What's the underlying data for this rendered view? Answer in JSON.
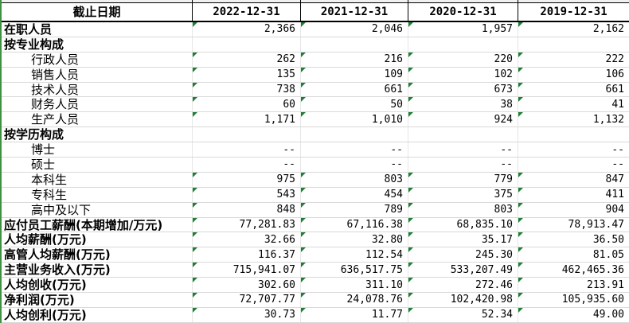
{
  "colors": {
    "left_edge_green": "#3f9142",
    "indicator_triangle_green": "#1e7e34",
    "header_border_black": "#000000",
    "gridline_gray": "#d9d9d9",
    "background": "#ffffff"
  },
  "table": {
    "header": {
      "label": "截止日期",
      "dates": [
        "2022-12-31",
        "2021-12-31",
        "2020-12-31",
        "2019-12-31"
      ]
    },
    "rows": [
      {
        "label": "在职人员",
        "style": "bold",
        "values": [
          "2,366",
          "2,046",
          "1,957",
          "2,162"
        ]
      },
      {
        "label": "按专业构成",
        "style": "bold",
        "values": [
          "",
          "",
          "",
          ""
        ]
      },
      {
        "label": "行政人员",
        "style": "indent",
        "values": [
          "262",
          "216",
          "220",
          "222"
        ]
      },
      {
        "label": "销售人员",
        "style": "indent",
        "values": [
          "135",
          "109",
          "102",
          "106"
        ]
      },
      {
        "label": "技术人员",
        "style": "indent",
        "values": [
          "738",
          "661",
          "673",
          "661"
        ]
      },
      {
        "label": "财务人员",
        "style": "indent",
        "values": [
          "60",
          "50",
          "38",
          "41"
        ]
      },
      {
        "label": "生产人员",
        "style": "indent",
        "values": [
          "1,171",
          "1,010",
          "924",
          "1,132"
        ]
      },
      {
        "label": "按学历构成",
        "style": "bold",
        "values": [
          "",
          "",
          "",
          ""
        ]
      },
      {
        "label": "博士",
        "style": "indent",
        "values": [
          "--",
          "--",
          "--",
          "--"
        ]
      },
      {
        "label": "硕士",
        "style": "indent",
        "values": [
          "--",
          "--",
          "--",
          "--"
        ]
      },
      {
        "label": "本科生",
        "style": "indent",
        "values": [
          "975",
          "803",
          "779",
          "847"
        ]
      },
      {
        "label": "专科生",
        "style": "indent",
        "values": [
          "543",
          "454",
          "375",
          "411"
        ]
      },
      {
        "label": "高中及以下",
        "style": "indent",
        "values": [
          "848",
          "789",
          "803",
          "904"
        ]
      },
      {
        "label": "应付员工薪酬(本期增加/万元)",
        "style": "bold",
        "values": [
          "77,281.83",
          "67,116.38",
          "68,835.10",
          "78,913.47"
        ]
      },
      {
        "label": "人均薪酬(万元)",
        "style": "bold",
        "values": [
          "32.66",
          "32.80",
          "35.17",
          "36.50"
        ]
      },
      {
        "label": "高管人均薪酬(万元)",
        "style": "bold",
        "values": [
          "116.37",
          "112.54",
          "245.30",
          "81.05"
        ]
      },
      {
        "label": "主营业务收入(万元)",
        "style": "bold",
        "values": [
          "715,941.07",
          "636,517.75",
          "533,207.49",
          "462,465.36"
        ]
      },
      {
        "label": "人均创收(万元)",
        "style": "bold",
        "values": [
          "302.60",
          "311.10",
          "272.46",
          "213.91"
        ]
      },
      {
        "label": "净利润(万元)",
        "style": "bold",
        "values": [
          "72,707.77",
          "24,078.76",
          "102,420.98",
          "105,935.60"
        ]
      },
      {
        "label": "人均创利(万元)",
        "style": "bold",
        "values": [
          "30.73",
          "11.77",
          "52.34",
          "49.00"
        ]
      }
    ]
  }
}
